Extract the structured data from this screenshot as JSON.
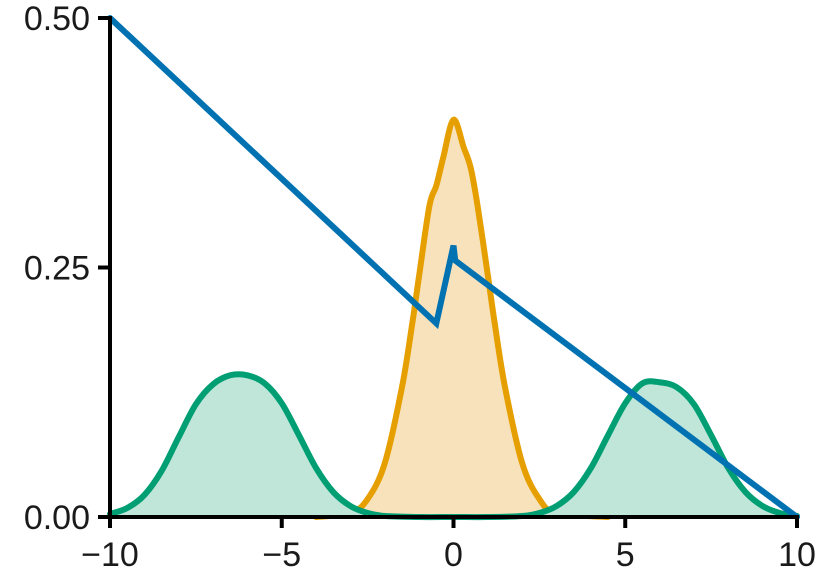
{
  "chart_data": {
    "type": "line",
    "title": "",
    "xlabel": "",
    "ylabel": "",
    "xlim": [
      -10,
      10
    ],
    "ylim": [
      0,
      0.5
    ],
    "xticks": [
      {
        "value": -10,
        "label": "−10"
      },
      {
        "value": -5,
        "label": "−5"
      },
      {
        "value": 0,
        "label": "0"
      },
      {
        "value": 5,
        "label": "5"
      },
      {
        "value": 10,
        "label": "10"
      }
    ],
    "yticks": [
      {
        "value": 0,
        "label": "0.00"
      },
      {
        "value": 0.25,
        "label": "0.25"
      },
      {
        "value": 0.5,
        "label": "0.50"
      }
    ],
    "grid": false,
    "legend": "none",
    "series": [
      {
        "kind": "filled-density",
        "color": "#e69f00",
        "fill": "#f8e2bc",
        "x": [
          -4.0,
          -3.0,
          -2.5,
          -2.0,
          -1.5,
          -1.2,
          -1.0,
          -0.7,
          -0.5,
          -0.3,
          0.0,
          0.3,
          0.5,
          0.7,
          1.0,
          1.2,
          1.5,
          2.0,
          2.5,
          3.0,
          4.5
        ],
        "y": [
          0.0,
          0.004,
          0.018,
          0.054,
          0.13,
          0.194,
          0.242,
          0.312,
          0.332,
          0.36,
          0.398,
          0.37,
          0.35,
          0.312,
          0.242,
          0.194,
          0.13,
          0.054,
          0.018,
          0.004,
          0.0
        ]
      },
      {
        "kind": "filled-density",
        "color": "#009e73",
        "fill": "#c0e6da",
        "x": [
          -10.0,
          -9.5,
          -9.0,
          -8.5,
          -8.0,
          -7.5,
          -7.0,
          -6.5,
          -6.0,
          -5.5,
          -5.0,
          -4.5,
          -4.0,
          -3.5,
          -3.0,
          -2.5,
          -2.0,
          -1.0,
          0.0,
          1.0,
          2.0,
          2.5,
          3.0,
          3.5,
          4.0,
          4.5,
          5.0,
          5.5,
          6.0,
          6.5,
          7.0,
          7.5,
          8.0,
          8.5,
          9.0,
          9.5,
          10.0
        ],
        "y": [
          0.003,
          0.009,
          0.022,
          0.046,
          0.08,
          0.113,
          0.133,
          0.142,
          0.142,
          0.134,
          0.114,
          0.082,
          0.049,
          0.025,
          0.011,
          0.004,
          0.001,
          0.0,
          0.0,
          0.0,
          0.001,
          0.004,
          0.011,
          0.025,
          0.049,
          0.082,
          0.114,
          0.134,
          0.135,
          0.13,
          0.113,
          0.082,
          0.049,
          0.025,
          0.011,
          0.004,
          0.001
        ]
      },
      {
        "kind": "line",
        "color": "#0072b2",
        "x": [
          -10.0,
          -0.5,
          0.0,
          0.05,
          10.0
        ],
        "y": [
          0.5,
          0.194,
          0.272,
          0.257,
          0.0
        ]
      }
    ]
  }
}
